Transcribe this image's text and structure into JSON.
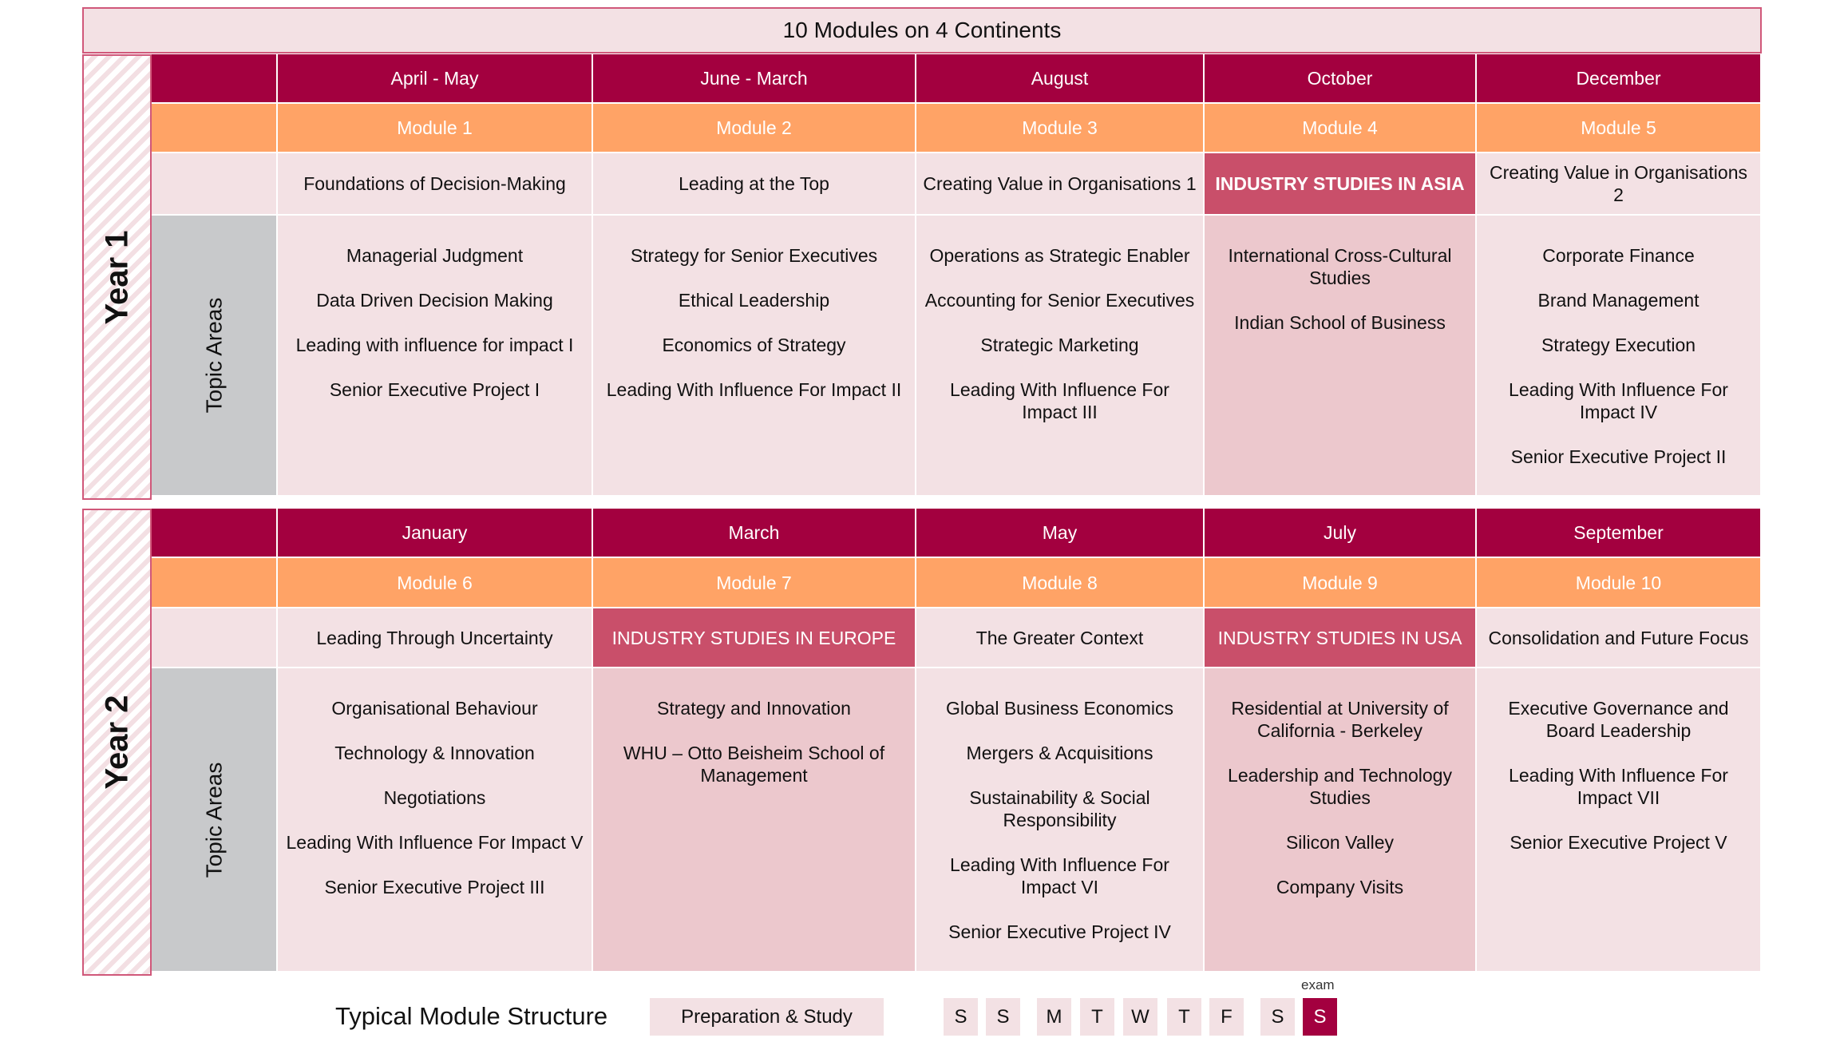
{
  "title": "10 Modules on 4 Continents",
  "years": [
    {
      "label": "Year 1",
      "topic_label": "Topic Areas",
      "modules": [
        {
          "period": "April - May",
          "module": "Module 1",
          "title": "Foundations of Decision-Making",
          "highlight": false,
          "topics": [
            "Managerial Judgment",
            "Data Driven Decision Making",
            "Leading with influence for impact I",
            "Senior Executive Project I"
          ]
        },
        {
          "period": "June - March",
          "module": "Module 2",
          "title": "Leading at the Top",
          "highlight": false,
          "topics": [
            "Strategy for Senior Executives",
            "Ethical Leadership",
            "Economics of Strategy",
            "Leading With Influence For Impact II"
          ]
        },
        {
          "period": "August",
          "module": "Module 3",
          "title": "Creating Value in Organisations 1",
          "highlight": false,
          "topics": [
            "Operations as Strategic Enabler",
            "Accounting for Senior Executives",
            "Strategic Marketing",
            "Leading With Influence For Impact III"
          ]
        },
        {
          "period": "October",
          "module": "Module 4",
          "title": "INDUSTRY STUDIES IN ASIA",
          "highlight": true,
          "bold": true,
          "topics": [
            "International Cross-Cultural Studies",
            "Indian School of Business"
          ]
        },
        {
          "period": "December",
          "module": "Module 5",
          "title": "Creating Value in Organisations 2",
          "highlight": false,
          "topics": [
            "Corporate Finance",
            "Brand Management",
            "Strategy Execution",
            "Leading With Influence For Impact IV",
            "Senior Executive Project II"
          ]
        }
      ]
    },
    {
      "label": "Year 2",
      "topic_label": "Topic Areas",
      "modules": [
        {
          "period": "January",
          "module": "Module 6",
          "title": "Leading Through Uncertainty",
          "highlight": false,
          "topics": [
            "Organisational Behaviour",
            "Technology & Innovation",
            "Negotiations",
            "Leading With Influence For Impact V",
            "Senior Executive Project III"
          ]
        },
        {
          "period": "March",
          "module": "Module 7",
          "title": "INDUSTRY STUDIES IN EUROPE",
          "highlight": true,
          "topics": [
            "Strategy and Innovation",
            "WHU – Otto Beisheim School of Management"
          ]
        },
        {
          "period": "May",
          "module": "Module 8",
          "title": "The Greater Context",
          "highlight": false,
          "topics": [
            "Global Business Economics",
            "Mergers & Acquisitions",
            "Sustainability & Social Responsibility",
            "Leading With Influence For Impact VI",
            "Senior Executive Project IV"
          ]
        },
        {
          "period": "July",
          "module": "Module 9",
          "title": "INDUSTRY STUDIES IN USA",
          "highlight": true,
          "topics": [
            "Residential at University of California - Berkeley",
            "Leadership and Technology Studies",
            "Silicon Valley",
            "Company Visits"
          ]
        },
        {
          "period": "September",
          "module": "Module 10",
          "title": "Consolidation and Future Focus",
          "highlight": false,
          "topics": [
            "Executive Governance and Board Leadership",
            "Leading With Influence For Impact VII",
            "Senior Executive Project V"
          ]
        }
      ]
    }
  ],
  "structure": {
    "label": "Typical Module Structure",
    "prep": "Preparation & Study",
    "days": [
      "S",
      "S",
      "M",
      "T",
      "W",
      "T",
      "F",
      "S",
      "S"
    ],
    "exam_label": "exam"
  },
  "colors": {
    "header": "#a3003f",
    "module": "#ffa366",
    "highlight": "#c94f6a",
    "cell": "#f3e1e4",
    "highlight_cell": "#ecc8cd",
    "topic_label": "#c8c9cb"
  }
}
